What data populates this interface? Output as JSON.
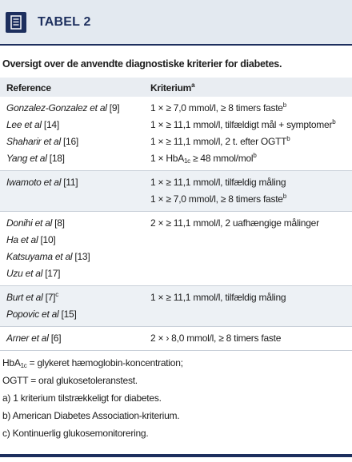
{
  "header": {
    "label": "TABEL 2"
  },
  "title": "Oversigt over de anvendte diagnostiske kriterier for diabetes.",
  "table": {
    "columns": [
      [
        {
          "text": "Reference"
        }
      ],
      [
        {
          "text": "Kriterium"
        },
        {
          "text": "a",
          "style": "sup"
        }
      ]
    ],
    "groups": [
      {
        "refs": [
          [
            {
              "text": "Gonzalez-Gonzalez et al",
              "style": "i"
            },
            {
              "text": " [9]"
            }
          ],
          [
            {
              "text": "Lee et al",
              "style": "i"
            },
            {
              "text": " [14]"
            }
          ],
          [
            {
              "text": "Shaharir et al",
              "style": "i"
            },
            {
              "text": " [16]"
            }
          ],
          [
            {
              "text": "Yang et al",
              "style": "i"
            },
            {
              "text": " [18]"
            }
          ]
        ],
        "criteria": [
          [
            {
              "text": "1 × ≥ 7,0 mmol/l, ≥ 8 timers faste"
            },
            {
              "text": "b",
              "style": "sup"
            }
          ],
          [
            {
              "text": "1 × ≥ 11,1 mmol/l, tilfældigt mål + symptomer"
            },
            {
              "text": "b",
              "style": "sup"
            }
          ],
          [
            {
              "text": "1 × ≥ 11,1 mmol/l, 2 t. efter OGTT"
            },
            {
              "text": "b",
              "style": "sup"
            }
          ],
          [
            {
              "text": "1 × HbA"
            },
            {
              "text": "1c",
              "style": "sub"
            },
            {
              "text": " ≥ 48 mmol/mol"
            },
            {
              "text": "b",
              "style": "sup"
            }
          ]
        ]
      },
      {
        "refs": [
          [
            {
              "text": "Iwamoto et al",
              "style": "i"
            },
            {
              "text": " [11]"
            }
          ]
        ],
        "criteria": [
          [
            {
              "text": "1 × ≥ 11,1 mmol/l, tilfældig måling"
            }
          ],
          [
            {
              "text": "1 × ≥ 7,0 mmol/l, ≥ 8 timers faste"
            },
            {
              "text": "b",
              "style": "sup"
            }
          ]
        ]
      },
      {
        "refs": [
          [
            {
              "text": "Donihi et al",
              "style": "i"
            },
            {
              "text": " [8]"
            }
          ],
          [
            {
              "text": "Ha et al",
              "style": "i"
            },
            {
              "text": " [10]"
            }
          ],
          [
            {
              "text": "Katsuyama et al",
              "style": "i"
            },
            {
              "text": " [13]"
            }
          ],
          [
            {
              "text": "Uzu et al",
              "style": "i"
            },
            {
              "text": " [17]"
            }
          ]
        ],
        "criteria": [
          [
            {
              "text": "2 × ≥ 11,1 mmol/l, 2 uafhængige målinger"
            }
          ]
        ]
      },
      {
        "refs": [
          [
            {
              "text": "Burt et al",
              "style": "i"
            },
            {
              "text": " [7]"
            },
            {
              "text": "c",
              "style": "sup"
            }
          ],
          [
            {
              "text": "Popovic et al",
              "style": "i"
            },
            {
              "text": " [15]"
            }
          ]
        ],
        "criteria": [
          [
            {
              "text": "1 × ≥ 11,1 mmol/l, tilfældig måling"
            }
          ]
        ]
      },
      {
        "refs": [
          [
            {
              "text": "Arner et al",
              "style": "i"
            },
            {
              "text": " [6]"
            }
          ]
        ],
        "criteria": [
          [
            {
              "text": "2 × › 8,0 mmol/l, ≥ 8 timers faste"
            }
          ]
        ]
      }
    ]
  },
  "footnotes": [
    [
      {
        "text": "HbA"
      },
      {
        "text": "1c",
        "style": "sub"
      },
      {
        "text": " = glykeret hæmoglobin-koncentration;"
      }
    ],
    [
      {
        "text": "OGTT = oral glukosetoleranstest."
      }
    ],
    [
      {
        "text": "a) 1 kriterium tilstrækkeligt for diabetes."
      }
    ],
    [
      {
        "text": "b) American Diabetes Association-kriterium."
      }
    ],
    [
      {
        "text": "c) Kontinuerlig glukosemonitorering."
      }
    ]
  ]
}
